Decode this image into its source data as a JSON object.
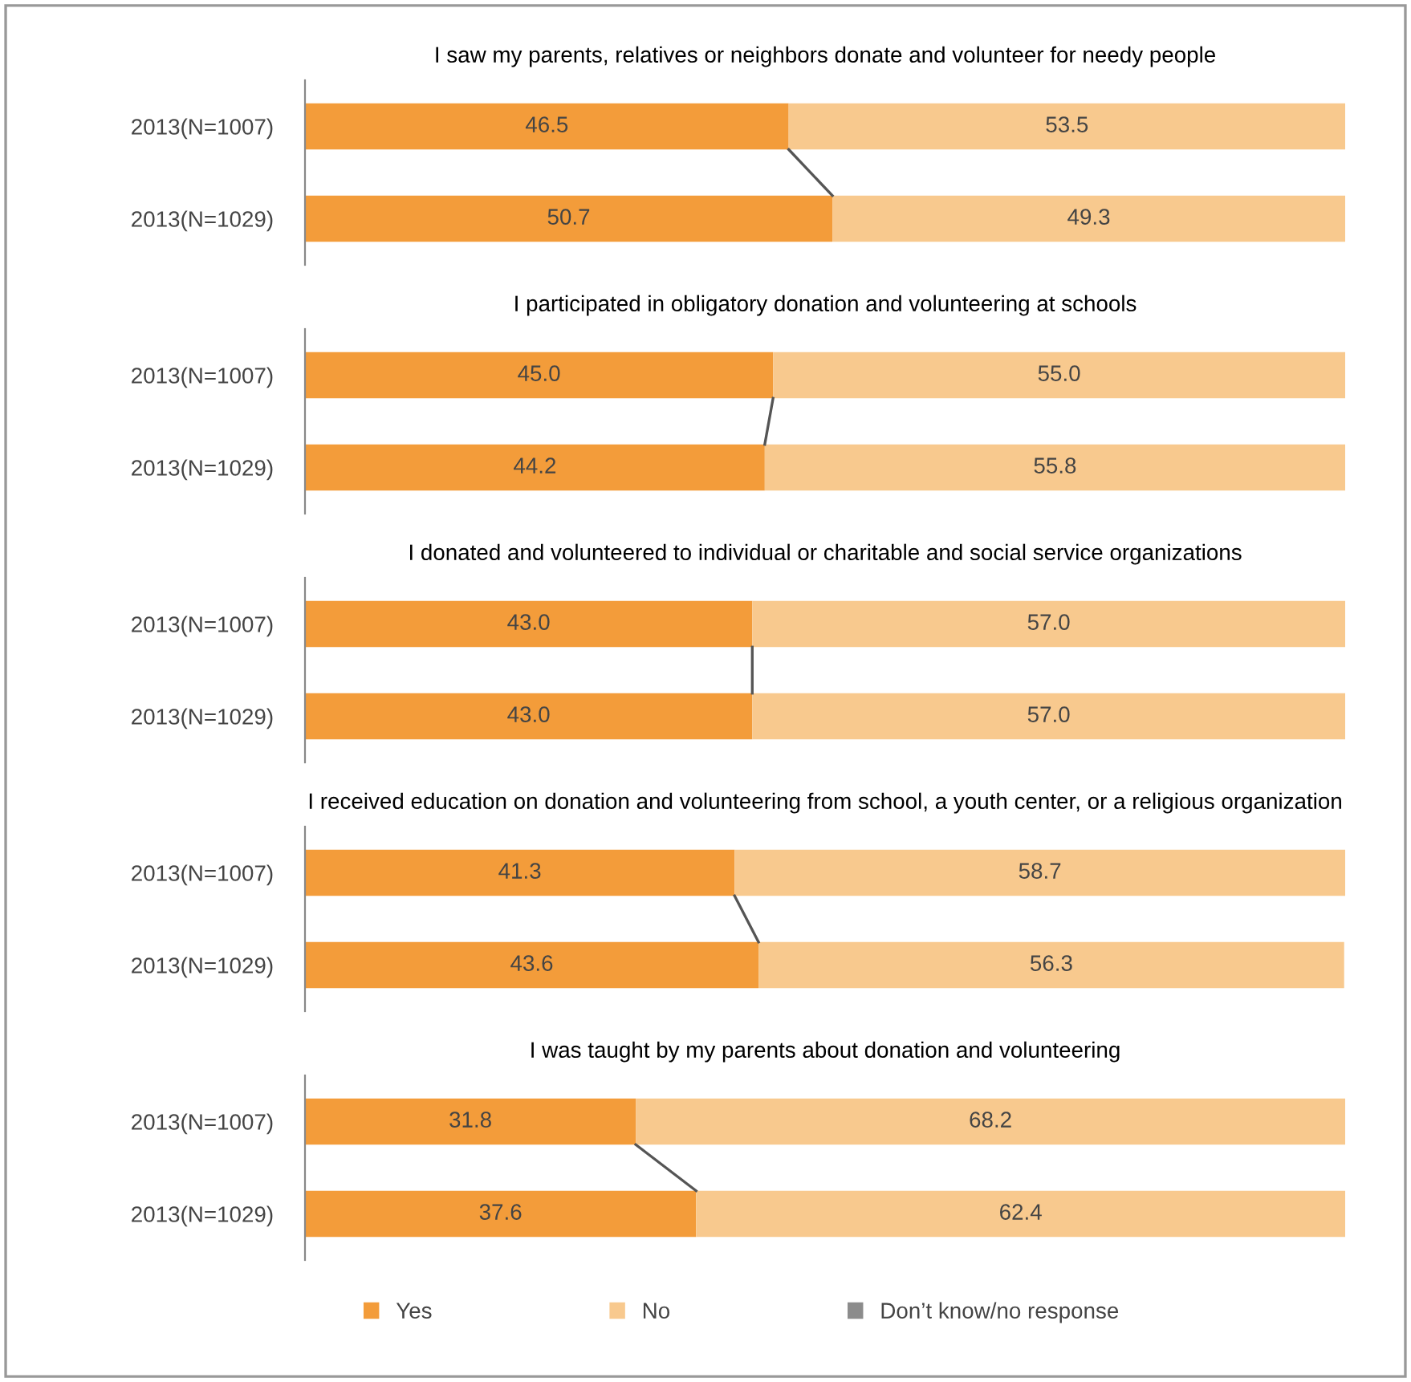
{
  "chart_data": [
    {
      "type": "bar",
      "orientation": "horizontal",
      "stacked": true,
      "title": "I saw my parents, relatives or neighbors donate and volunteer for needy people",
      "categories": [
        "2013(N=1007)",
        "2013(N=1029)"
      ],
      "tick_labels": "y",
      "legend": false,
      "series": [
        {
          "color": "#f39c3a",
          "values": [
            46.5,
            50.7
          ],
          "value_labels": [
            "46.5",
            "50.7"
          ]
        },
        {
          "color": "#f8c98e",
          "values": [
            53.5,
            49.3
          ],
          "value_labels": [
            "53.5",
            "49.3"
          ]
        }
      ]
    },
    {
      "type": "bar",
      "orientation": "horizontal",
      "stacked": true,
      "title": "I participated in obligatory donation and volunteering at schools",
      "categories": [
        "2013(N=1007)",
        "2013(N=1029)"
      ],
      "tick_labels": "y",
      "legend": false,
      "series": [
        {
          "color": "#f39c3a",
          "values": [
            45.0,
            44.2
          ],
          "value_labels": [
            "45.0",
            "44.2"
          ]
        },
        {
          "color": "#f8c98e",
          "values": [
            55.0,
            55.8
          ],
          "value_labels": [
            "55.0",
            "55.8"
          ]
        }
      ]
    },
    {
      "type": "bar",
      "orientation": "horizontal",
      "stacked": true,
      "title": "I donated and volunteered to individual or charitable and social service organizations",
      "categories": [
        "2013(N=1007)",
        "2013(N=1029)"
      ],
      "tick_labels": "y",
      "legend": false,
      "series": [
        {
          "color": "#f39c3a",
          "values": [
            43.0,
            43.0
          ],
          "value_labels": [
            "43.0",
            "43.0"
          ]
        },
        {
          "color": "#f8c98e",
          "values": [
            57.0,
            57.0
          ],
          "value_labels": [
            "57.0",
            "57.0"
          ]
        }
      ]
    },
    {
      "type": "bar",
      "orientation": "horizontal",
      "stacked": true,
      "title": "I received education on donation and volunteering from school, a youth center, or a religious organization",
      "categories": [
        "2013(N=1007)",
        "2013(N=1029)"
      ],
      "tick_labels": "y",
      "legend": false,
      "series": [
        {
          "color": "#f39c3a",
          "values": [
            41.3,
            43.6
          ],
          "value_labels": [
            "41.3",
            "43.6"
          ]
        },
        {
          "color": "#f8c98e",
          "values": [
            58.7,
            56.3
          ],
          "value_labels": [
            "58.7",
            "56.3"
          ]
        }
      ]
    },
    {
      "type": "bar",
      "orientation": "horizontal",
      "stacked": true,
      "title": "I was taught by my parents about donation and volunteering",
      "categories": [
        "2013(N=1007)",
        "2013(N=1029)"
      ],
      "tick_labels": "y",
      "legend": "bottom",
      "series": [
        {
          "name": "Yes",
          "color": "#f39c3a",
          "values": [
            31.8,
            37.6
          ],
          "value_labels": [
            "31.8",
            "37.6"
          ]
        },
        {
          "name": "No",
          "color": "#f8c98e",
          "values": [
            68.2,
            62.4
          ],
          "value_labels": [
            "68.2",
            "62.4"
          ]
        },
        {
          "name": "Don’t know/no response",
          "color": "#8c8c8c",
          "values": [
            null,
            null
          ]
        }
      ]
    }
  ]
}
